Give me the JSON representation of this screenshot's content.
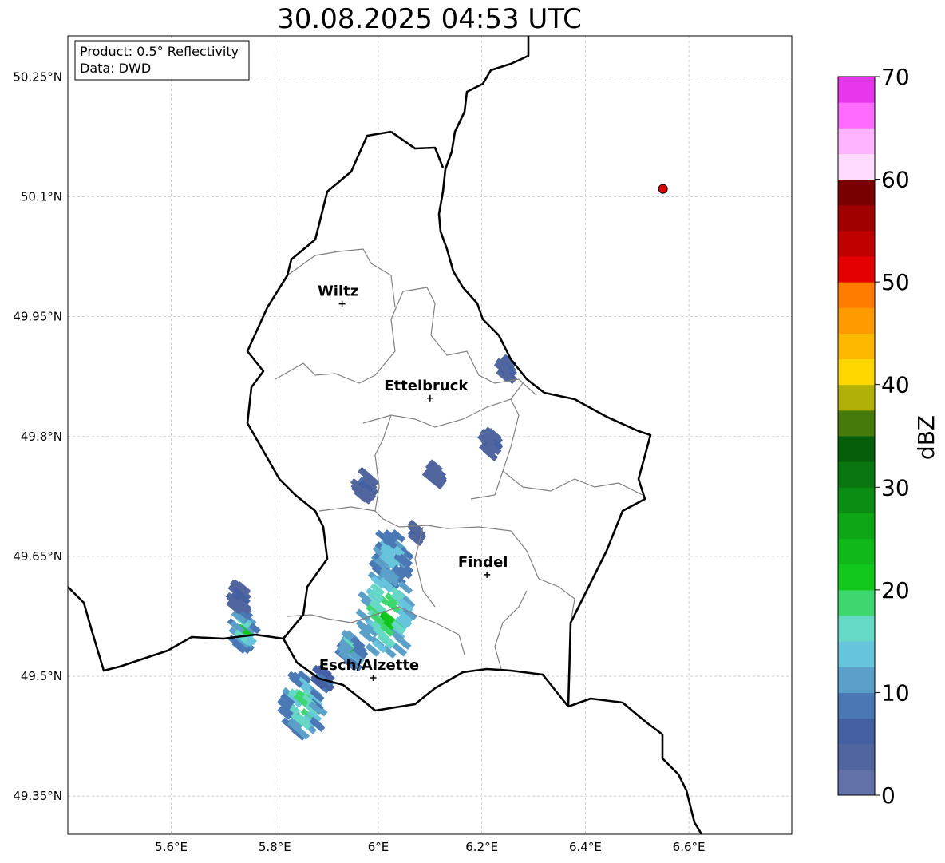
{
  "title": "30.08.2025 04:53 UTC",
  "info_box": {
    "line1": "Product: 0.5° Reflectivity",
    "line2": "Data: DWD"
  },
  "x_ticks": [
    {
      "lon": 5.6,
      "label": "5.6°E"
    },
    {
      "lon": 5.8,
      "label": "5.8°E"
    },
    {
      "lon": 6.0,
      "label": "6°E"
    },
    {
      "lon": 6.2,
      "label": "6.2°E"
    },
    {
      "lon": 6.4,
      "label": "6.4°E"
    },
    {
      "lon": 6.6,
      "label": "6.6°E"
    }
  ],
  "y_ticks": [
    {
      "lat": 50.25,
      "label": "50.25°N"
    },
    {
      "lat": 50.1,
      "label": "50.1°N"
    },
    {
      "lat": 49.95,
      "label": "49.95°N"
    },
    {
      "lat": 49.8,
      "label": "49.8°N"
    },
    {
      "lat": 49.65,
      "label": "49.65°N"
    },
    {
      "lat": 49.5,
      "label": "49.5°N"
    },
    {
      "lat": 49.35,
      "label": "49.35°N"
    }
  ],
  "extent": {
    "lon": [
      5.4,
      6.8
    ],
    "lat": [
      49.3,
      50.3
    ]
  },
  "cities": [
    {
      "name": "Wiltz",
      "lon": 5.93,
      "lat": 49.966
    },
    {
      "name": "Ettelbruck",
      "lon": 6.1,
      "lat": 49.848
    },
    {
      "name": "Findel",
      "lon": 6.21,
      "lat": 49.627
    },
    {
      "name": "Esch/Alzette",
      "lon": 5.99,
      "lat": 49.498
    }
  ],
  "radar_site": {
    "lon": 6.55,
    "lat": 50.11,
    "color": "#e00000"
  },
  "colorbar": {
    "label": "dBZ",
    "min": 0,
    "max": 70,
    "ticks": [
      "0",
      "10",
      "20",
      "30",
      "40",
      "50",
      "60",
      "70"
    ],
    "colors": [
      "#6272a8",
      "#51669f",
      "#4460a2",
      "#4a78b4",
      "#5ba0c8",
      "#66c4dc",
      "#66d8c6",
      "#3ed66e",
      "#12c81c",
      "#10b81a",
      "#0ea616",
      "#0b8c12",
      "#0a7610",
      "#065e0a",
      "#467a0a",
      "#b0b008",
      "#ffd800",
      "#ffb800",
      "#ff9a00",
      "#ff7c00",
      "#e40000",
      "#c00000",
      "#a00000",
      "#780000",
      "#ffdcff",
      "#ffb4ff",
      "#ff6cff",
      "#e836ec"
    ]
  }
}
